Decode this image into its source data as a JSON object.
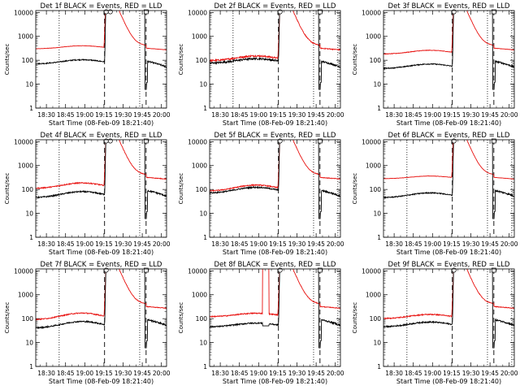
{
  "colors": {
    "events": "#000000",
    "lld": "#e8110f",
    "axes": "#000000"
  },
  "chart_data": {
    "type": "line",
    "yscale": "log",
    "ylim": [
      1,
      12000
    ],
    "ytick_labels": [
      "1",
      "10",
      "100",
      "1000",
      "10000"
    ],
    "xlabel": "Start Time (08-Feb-09 18:21:40)",
    "ylabel": "Counts/sec",
    "x_tick_labels": [
      "18:30",
      "18:45",
      "19:00",
      "19:15",
      "19:30",
      "19:45",
      "20:00"
    ],
    "x_tick_minutes": [
      30,
      45,
      60,
      75,
      90,
      105,
      120
    ],
    "xlim_minutes": [
      21.67,
      124
    ],
    "markers": {
      "dotted_minutes": [
        40,
        103,
        122
      ],
      "dashed_minutes": [
        75.5,
        108
      ]
    },
    "panels": [
      {
        "title": "Det 1f BLACK = Events, RED = LLD",
        "lld_base": 300,
        "lld_bump": 1.35,
        "ev_base": 70,
        "ev_bump": 1.5,
        "noise": 0.03,
        "dotted": [
          40,
          103
        ]
      },
      {
        "title": "Det 2f BLACK = Events, RED = LLD",
        "lld_base": 95,
        "lld_bump": 1.6,
        "ev_base": 75,
        "ev_bump": 1.55,
        "noise": 0.15,
        "dotted": [
          40,
          103,
          122
        ]
      },
      {
        "title": "Det 3f BLACK = Events, RED = LLD",
        "lld_base": 180,
        "lld_bump": 1.45,
        "ev_base": 45,
        "ev_bump": 1.55,
        "noise": 0.05,
        "dotted": [
          103,
          122
        ]
      },
      {
        "title": "Det 4f BLACK = Events, RED = LLD",
        "lld_base": 110,
        "lld_bump": 1.7,
        "ev_base": 45,
        "ev_bump": 1.8,
        "noise": 0.1,
        "dotted": [
          40,
          103
        ]
      },
      {
        "title": "Det 5f BLACK = Events, RED = LLD",
        "lld_base": 85,
        "lld_bump": 1.8,
        "ev_base": 70,
        "ev_bump": 1.75,
        "noise": 0.1,
        "dotted": [
          103,
          122
        ]
      },
      {
        "title": "Det 6f BLACK = Events, RED = LLD",
        "lld_base": 280,
        "lld_bump": 1.3,
        "ev_base": 45,
        "ev_bump": 1.6,
        "noise": 0.03,
        "dotted": [
          40,
          103,
          122
        ]
      },
      {
        "title": "Det 7f BLACK = Events, RED = LLD",
        "lld_base": 90,
        "lld_bump": 1.9,
        "ev_base": 40,
        "ev_bump": 1.9,
        "noise": 0.1,
        "dotted": [
          40,
          103
        ]
      },
      {
        "title": "Det 8f BLACK = Events, RED = LLD",
        "lld_base": 120,
        "lld_bump": 1.4,
        "ev_base": 45,
        "ev_bump": 1.45,
        "noise": 0.1,
        "dotted": [
          103,
          122
        ],
        "spike": [
          63,
          68
        ]
      },
      {
        "title": "Det 9f BLACK = Events, RED = LLD",
        "lld_base": 100,
        "lld_bump": 1.5,
        "ev_base": 45,
        "ev_bump": 1.6,
        "noise": 0.1,
        "dotted": [
          40,
          103,
          122
        ]
      }
    ]
  }
}
